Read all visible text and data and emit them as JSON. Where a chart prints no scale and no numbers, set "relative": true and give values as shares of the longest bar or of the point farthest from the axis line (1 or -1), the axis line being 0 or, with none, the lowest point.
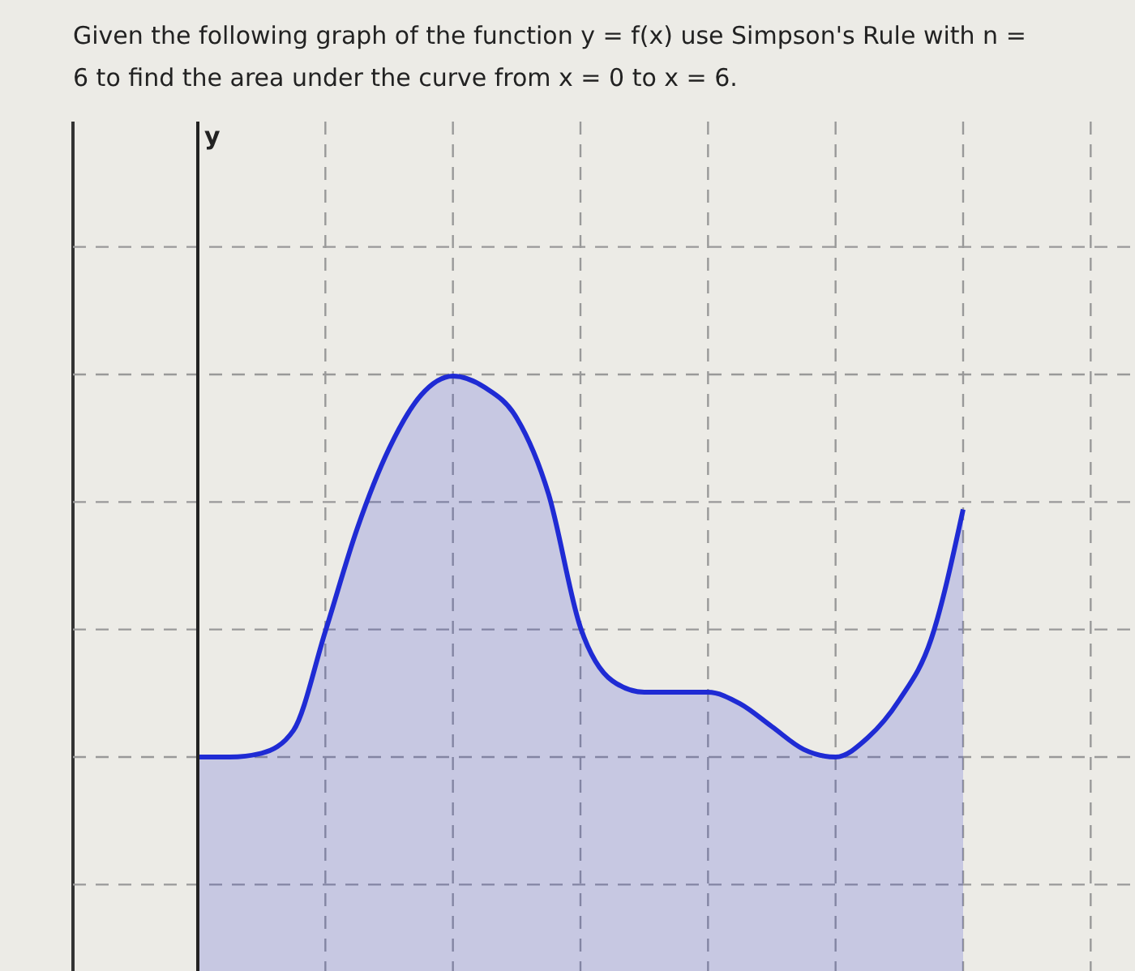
{
  "chart_data": {
    "type": "area",
    "title": "Given the following graph of the function y = f(x) use Simpson's Rule with n = 6 to find the area under the curve from x = 0 to x = 6.",
    "annotations": [
      "y"
    ],
    "relative": true,
    "grid": true,
    "categories": [
      null,
      null,
      null,
      null,
      null,
      null,
      null,
      null,
      null,
      null,
      null,
      null,
      null,
      null,
      null,
      null,
      null,
      null,
      null,
      null,
      null,
      null,
      null,
      null,
      null
    ],
    "series": [
      {
        "color": "#1f2bd4",
        "values": [
          0,
          0,
          0.01,
          0.07,
          0.33,
          0.6,
          0.81,
          0.95,
          1,
          0.97,
          0.89,
          0.69,
          0.34,
          0.2,
          0.17,
          0.17,
          0.17,
          0.14,
          0.08,
          0.02,
          0,
          0.05,
          0.15,
          0.31,
          0.65
        ]
      }
    ]
  }
}
